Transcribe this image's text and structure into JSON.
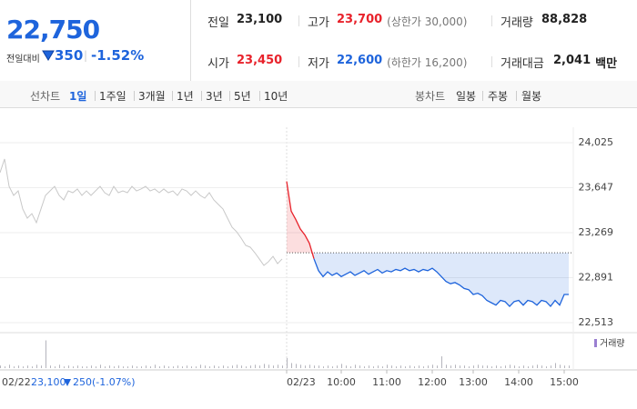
{
  "header": {
    "price": "22,750",
    "change_label": "전일대비",
    "change": "350",
    "change_pct": "-1.52%"
  },
  "stats": [
    {
      "label": "전일",
      "value": "23,100",
      "color": "#222222"
    },
    {
      "label": "고가",
      "value": "23,700",
      "note": "(상한가 30,000)",
      "color": "#e8222b"
    },
    {
      "label": "거래량",
      "value": "88,828",
      "color": "#222222"
    },
    {
      "label": "시가",
      "value": "23,450",
      "color": "#e8222b"
    },
    {
      "label": "저가",
      "value": "22,600",
      "note": "(하한가 16,200)",
      "color": "#1e64dc"
    },
    {
      "label": "거래대금",
      "value": "2,041",
      "unit": "백만",
      "color": "#222222"
    }
  ],
  "tabs": {
    "line_label": "선차트",
    "line": [
      "1일",
      "1주일",
      "3개월",
      "1년",
      "3년",
      "5년",
      "10년"
    ],
    "active_index": 0,
    "candle_label": "봉차트",
    "candle": [
      "일봉",
      "주봉",
      "월봉"
    ]
  },
  "chart_data": {
    "type": "line",
    "x": [
      0,
      1,
      2,
      3,
      4,
      5,
      6,
      7,
      8,
      9,
      10,
      11,
      12,
      13,
      14,
      15,
      16,
      17,
      18,
      19,
      20,
      21,
      22,
      23,
      24,
      25,
      26,
      27,
      28,
      29,
      30,
      31,
      32,
      33,
      34,
      35,
      36,
      37,
      38,
      39,
      40,
      41,
      42,
      43,
      44,
      45,
      46,
      47,
      48,
      49,
      50,
      51,
      52,
      53,
      54,
      55,
      56,
      57,
      58,
      59,
      60,
      61,
      62,
      63,
      64,
      65,
      66,
      67,
      68,
      69,
      70,
      71,
      72,
      73,
      74,
      75,
      76,
      77,
      78,
      79,
      80,
      81,
      82,
      83,
      84,
      85,
      86,
      87,
      88,
      89,
      90,
      91,
      92,
      93,
      94,
      95,
      96,
      97,
      98,
      99,
      100,
      101,
      102,
      103,
      104,
      105,
      106,
      107,
      108,
      109,
      110,
      111,
      112,
      113,
      114,
      115,
      116,
      117,
      118,
      119,
      120,
      121,
      122,
      123,
      124,
      125
    ],
    "series": [
      {
        "color": "#c8c8c8",
        "values": [
          23773,
          23888,
          23658,
          23582,
          23620,
          23468,
          23391,
          23429,
          23353,
          23468,
          23582,
          23620,
          23658,
          23582,
          23544,
          23620,
          23605,
          23636,
          23582,
          23620,
          23582,
          23620,
          23658,
          23605,
          23582,
          23658,
          23605,
          23620,
          23605,
          23658,
          23620,
          23636,
          23658,
          23620,
          23636,
          23605,
          23636,
          23605,
          23620,
          23582,
          23636,
          23620,
          23582,
          23620,
          23582,
          23559,
          23605,
          23544,
          23506,
          23468,
          23391,
          23315,
          23277,
          23223,
          23162,
          23147,
          23101,
          23048,
          22994,
          23025,
          23070,
          23009,
          23048,
          null,
          null,
          null,
          null,
          null,
          null,
          null,
          null,
          null,
          null,
          null,
          null,
          null,
          null,
          null,
          null,
          null,
          null,
          null,
          null,
          null,
          null,
          null,
          null,
          null,
          null,
          null,
          null,
          null,
          null,
          null,
          null,
          null,
          null,
          null,
          null,
          null,
          null,
          null,
          null,
          null,
          null,
          null,
          null,
          null,
          null,
          null,
          null,
          null,
          null,
          null,
          null,
          null,
          null,
          null,
          null,
          null,
          null,
          null,
          null,
          null,
          null,
          null
        ]
      },
      {
        "color": "#1e64dc",
        "up_color": "#e8222b",
        "values": [
          null,
          null,
          null,
          null,
          null,
          null,
          null,
          null,
          null,
          null,
          null,
          null,
          null,
          null,
          null,
          null,
          null,
          null,
          null,
          null,
          null,
          null,
          null,
          null,
          null,
          null,
          null,
          null,
          null,
          null,
          null,
          null,
          null,
          null,
          null,
          null,
          null,
          null,
          null,
          null,
          null,
          null,
          null,
          null,
          null,
          null,
          null,
          null,
          null,
          null,
          null,
          null,
          null,
          null,
          null,
          null,
          null,
          null,
          null,
          null,
          null,
          null,
          null,
          23700,
          23450,
          23380,
          23300,
          23250,
          23180,
          23050,
          22950,
          22900,
          22940,
          22910,
          22930,
          22900,
          22920,
          22940,
          22910,
          22930,
          22950,
          22920,
          22940,
          22960,
          22930,
          22950,
          22940,
          22960,
          22950,
          22970,
          22950,
          22960,
          22940,
          22960,
          22950,
          22970,
          22940,
          22900,
          22860,
          22840,
          22850,
          22830,
          22800,
          22790,
          22750,
          22760,
          22740,
          22700,
          22680,
          22660,
          22700,
          22690,
          22650,
          22690,
          22700,
          22660,
          22700,
          22690,
          22660,
          22700,
          22690,
          22650,
          22700,
          22660,
          22750,
          22750
        ]
      }
    ],
    "baseline": 23100,
    "volume": {
      "name": "거래량",
      "color": "#b4b4bc",
      "ylim": [
        0,
        40
      ],
      "values": [
        3,
        2,
        4,
        2,
        3,
        2,
        3,
        2,
        4,
        3,
        33,
        3,
        2,
        4,
        2,
        3,
        2,
        3,
        2,
        2,
        3,
        2,
        4,
        2,
        3,
        2,
        3,
        2,
        2,
        3,
        2,
        2,
        3,
        2,
        4,
        2,
        3,
        2,
        2,
        3,
        2,
        3,
        2,
        2,
        4,
        3,
        2,
        3,
        2,
        3,
        2,
        3,
        4,
        3,
        2,
        3,
        4,
        3,
        5,
        4,
        3,
        4,
        3,
        12,
        6,
        5,
        4,
        3,
        4,
        3,
        3,
        2,
        3,
        2,
        3,
        5,
        3,
        2,
        4,
        3,
        2,
        3,
        2,
        3,
        2,
        4,
        3,
        2,
        3,
        2,
        3,
        2,
        3,
        2,
        3,
        4,
        3,
        14,
        4,
        3,
        4,
        3,
        3,
        2,
        3,
        4,
        3,
        3,
        2,
        3,
        2,
        3,
        4,
        3,
        2,
        3,
        2,
        3,
        4,
        3,
        2,
        3,
        6,
        4,
        3,
        3
      ]
    },
    "xlim": [
      0,
      126
    ],
    "xticks": [
      {
        "value": 63,
        "label": "02/23"
      },
      {
        "value": 75,
        "label": "10:00"
      },
      {
        "value": 85,
        "label": "11:00"
      },
      {
        "value": 95,
        "label": "12:00"
      },
      {
        "value": 104,
        "label": "13:00"
      },
      {
        "value": 114,
        "label": "14:00"
      },
      {
        "value": 124,
        "label": "15:00"
      }
    ],
    "ylim": [
      22513,
      24025
    ],
    "yticks": [
      {
        "value": 24025,
        "label": "24,025"
      },
      {
        "value": 23647,
        "label": "23,647"
      },
      {
        "value": 23269,
        "label": "23,269"
      },
      {
        "value": 22891,
        "label": "22,891"
      },
      {
        "value": 22513,
        "label": "22,513"
      }
    ],
    "grid": true
  },
  "footer": {
    "date": "02/22",
    "prev_close": "23,100",
    "change": "250",
    "change_pct": "(-1.07%)"
  }
}
